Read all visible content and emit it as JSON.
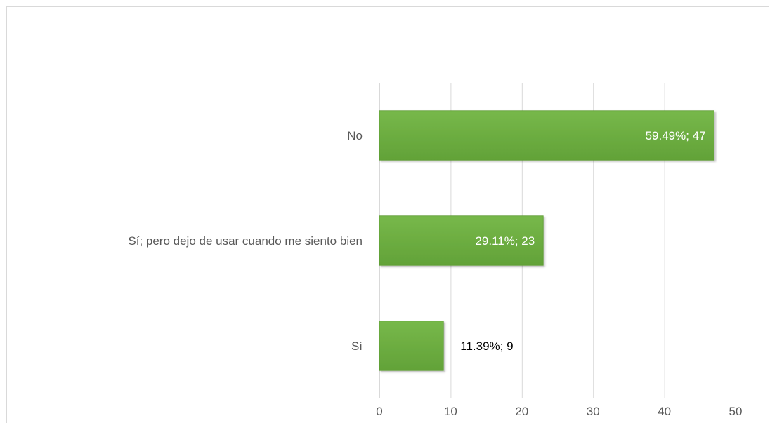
{
  "chart_data": {
    "type": "bar",
    "orientation": "horizontal",
    "categories": [
      "No",
      "Sí;  pero dejo de usar cuando me siento bien",
      "Sí"
    ],
    "values": [
      47,
      23,
      9
    ],
    "data_labels": [
      "59.49%; 47",
      "29.11%; 23",
      "11.39%; 9"
    ],
    "xlim": [
      0,
      50
    ],
    "xticks": [
      0,
      10,
      20,
      30,
      40,
      50
    ],
    "grid": "vertical",
    "title": "",
    "xlabel": "",
    "ylabel": "",
    "colors": {
      "bar": "#6aac3f",
      "bar_border": "#5b9a33",
      "grid": "#d9d9d9",
      "label_inside": "#ffffff",
      "label_outside": "#000000",
      "axis_text": "#595959"
    }
  }
}
